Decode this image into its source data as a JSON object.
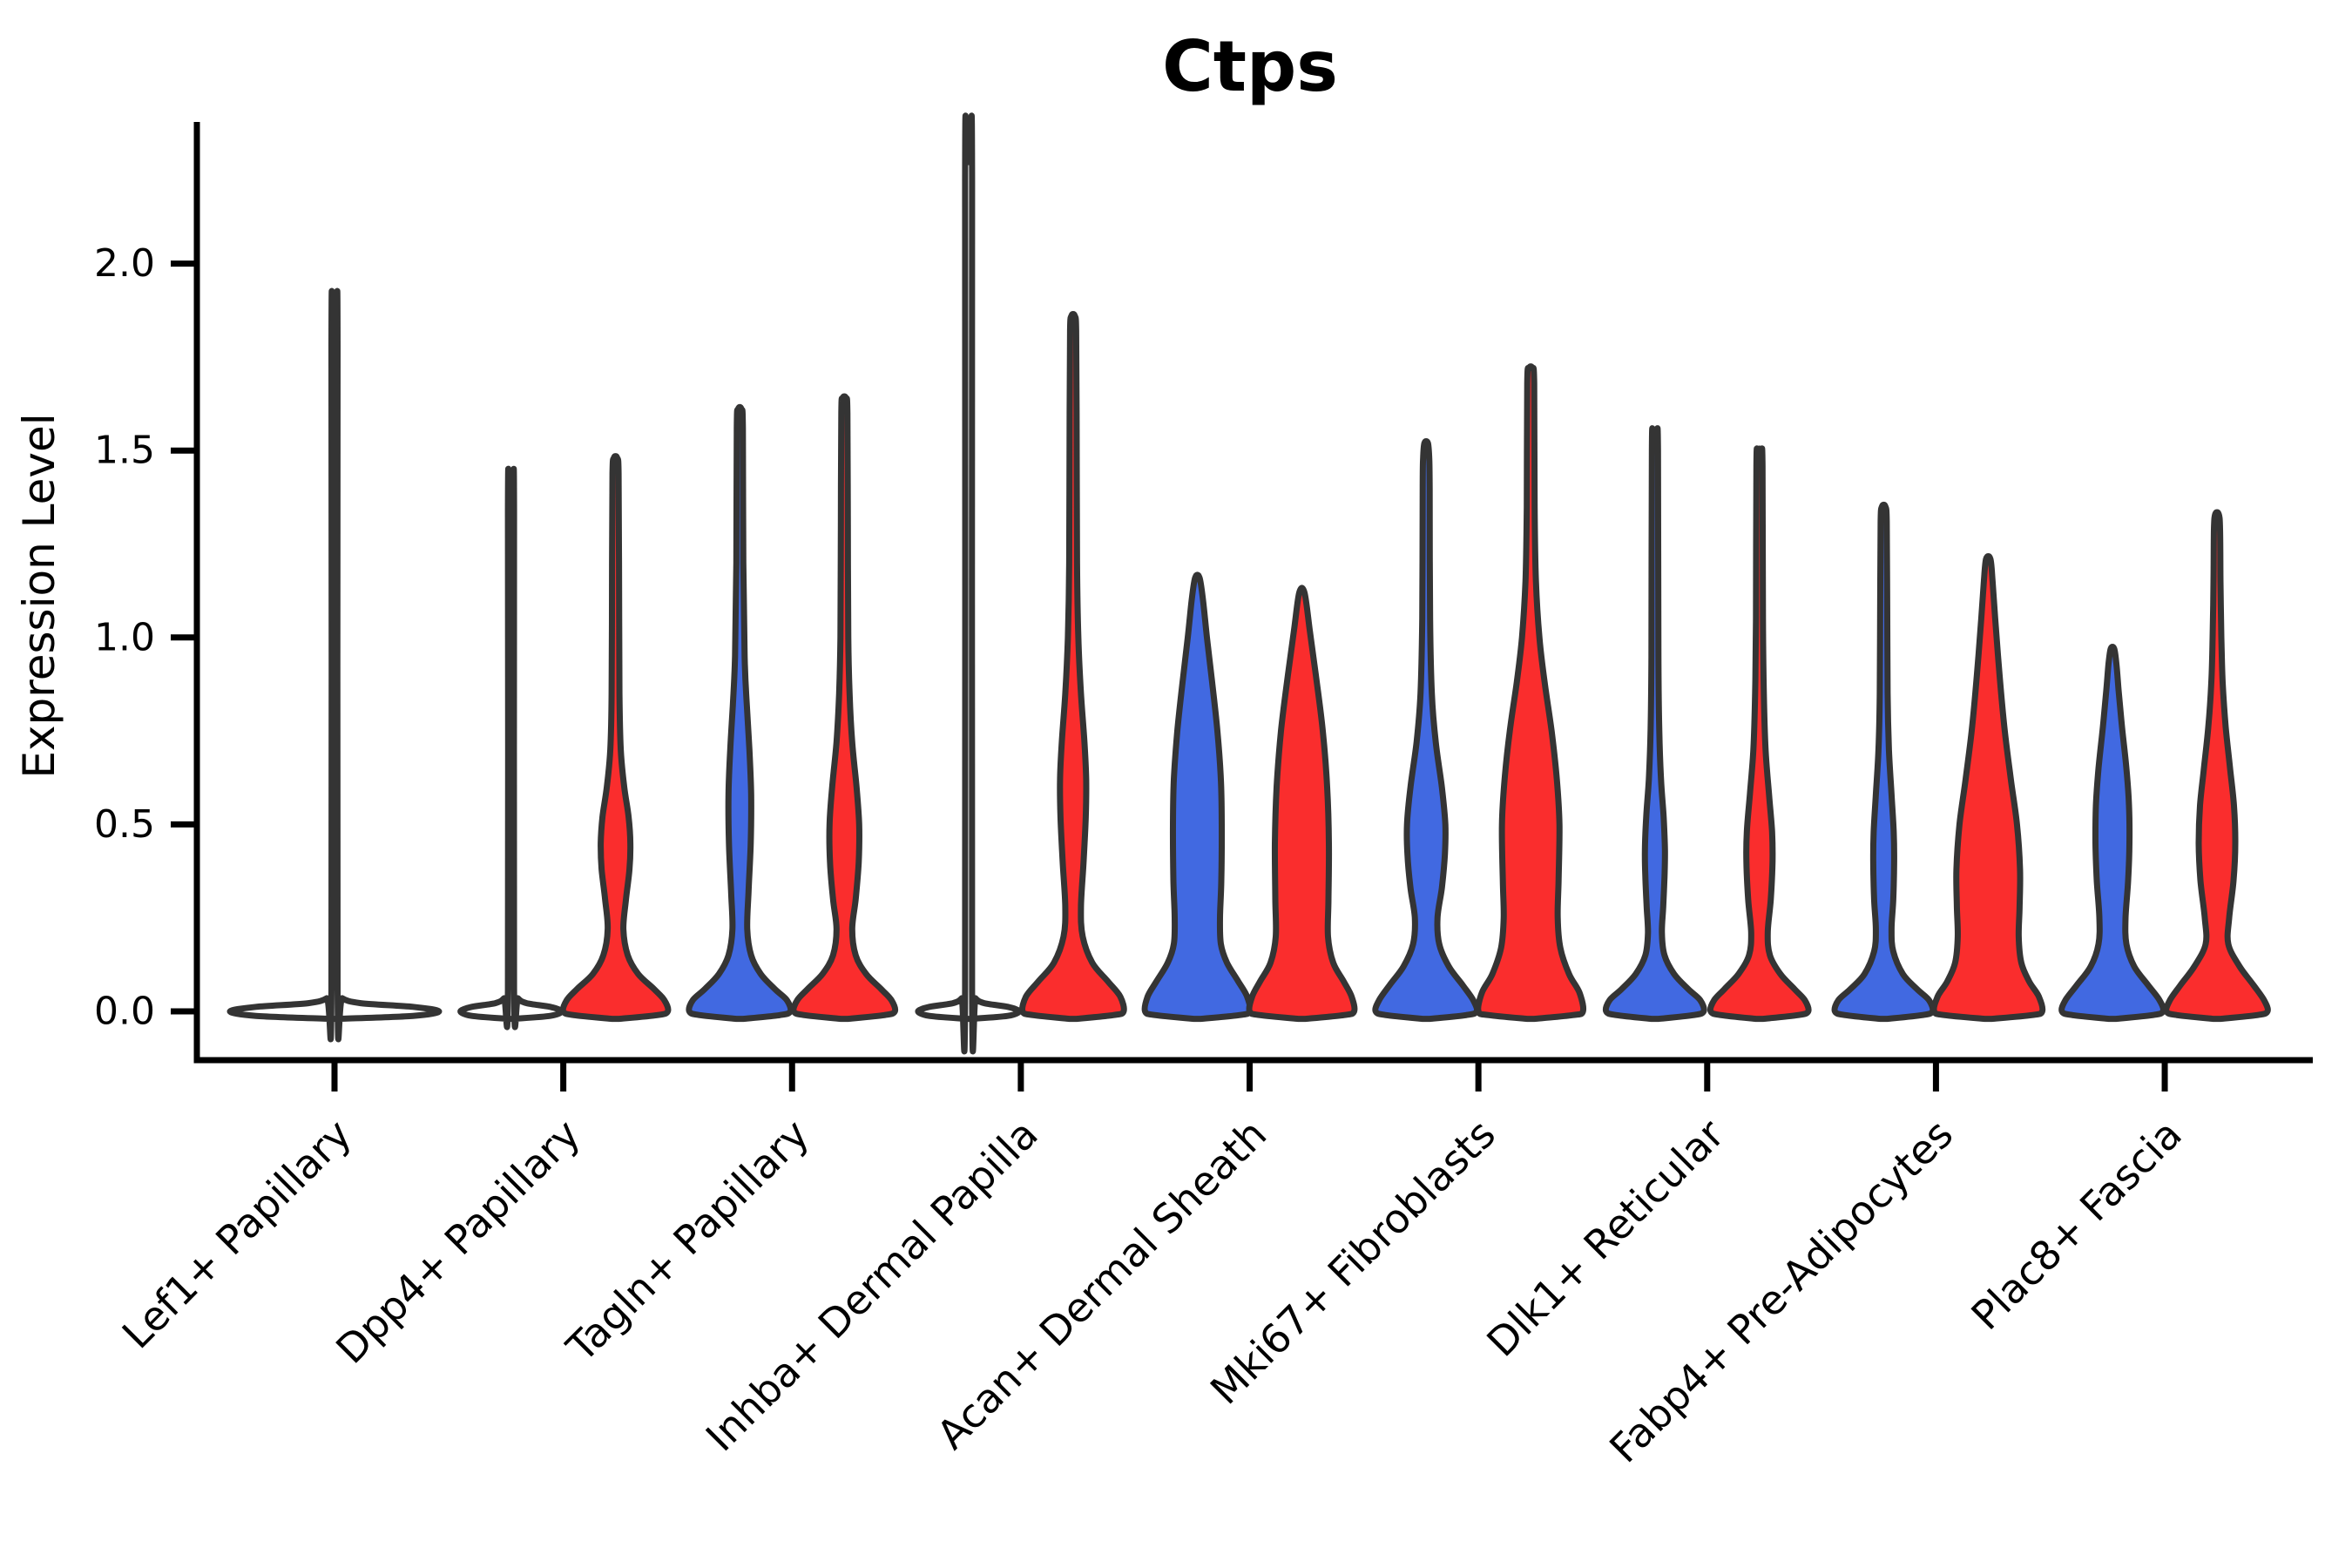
{
  "chart_data": {
    "type": "violin",
    "title": "Ctps",
    "xlabel": "",
    "ylabel": "Expression Level",
    "y_tick_labels": [
      "0.0",
      "0.5",
      "1.0",
      "1.5",
      "2.0"
    ],
    "y_ticks": [
      0.0,
      0.5,
      1.0,
      1.5,
      2.0
    ],
    "ylim": [
      -0.08,
      2.38
    ],
    "grid": false,
    "legend": "none",
    "categories": [
      "Lef1+ Papillary",
      "Dpp4+ Papillary",
      "Tagln+ Papillary",
      "Inhba+ Dermal Papilla",
      "Acan+ Dermal Sheath",
      "Mki67+ Fibroblasts",
      "Dlk1+ Reticular",
      "Fabp4+ Pre-Adipocytes",
      "Plac8+ Fascia"
    ],
    "series_colors": {
      "blue": "#4169E1",
      "red": "#FA2D2D"
    },
    "outline_color": "#343434",
    "axis_color": "#000000",
    "violins": [
      {
        "category_index": 0,
        "category": "Lef1+ Papillary",
        "side": "full",
        "color": "none",
        "max_expression": 1.84,
        "bulk_at": 0.0,
        "profile": [
          [
            -0.02,
            4
          ],
          [
            -0.012,
            90
          ],
          [
            0.0,
            120
          ],
          [
            0.012,
            90
          ],
          [
            0.022,
            30
          ],
          [
            0.035,
            9
          ],
          [
            0.06,
            3.5
          ],
          [
            1.78,
            3.5
          ],
          [
            1.84,
            2
          ]
        ]
      },
      {
        "category_index": 1,
        "category": "Dpp4+ Papillary",
        "side": "left",
        "color": "none",
        "max_expression": 1.39,
        "bulk_at": 0.0,
        "profile": [
          [
            -0.02,
            3
          ],
          [
            -0.012,
            45
          ],
          [
            0.0,
            58
          ],
          [
            0.012,
            45
          ],
          [
            0.022,
            18
          ],
          [
            0.035,
            8
          ],
          [
            0.06,
            3.5
          ],
          [
            1.34,
            3.5
          ],
          [
            1.39,
            2
          ]
        ]
      },
      {
        "category_index": 1,
        "category": "Dpp4+ Papillary",
        "side": "right",
        "color": "red",
        "max_expression": 1.48,
        "bulk_at": 0.45,
        "profile": [
          [
            -0.02,
            4
          ],
          [
            -0.01,
            48
          ],
          [
            0.0,
            60
          ],
          [
            0.03,
            56
          ],
          [
            0.06,
            44
          ],
          [
            0.1,
            26
          ],
          [
            0.15,
            14
          ],
          [
            0.22,
            9
          ],
          [
            0.3,
            12
          ],
          [
            0.38,
            16
          ],
          [
            0.45,
            17
          ],
          [
            0.52,
            15
          ],
          [
            0.6,
            10
          ],
          [
            0.7,
            6
          ],
          [
            0.85,
            4.5
          ],
          [
            1.2,
            4
          ],
          [
            1.44,
            3.5
          ],
          [
            1.48,
            2
          ]
        ]
      },
      {
        "category_index": 2,
        "category": "Tagln+ Papillary",
        "side": "left",
        "color": "blue",
        "max_expression": 1.61,
        "bulk_at": 0.58,
        "profile": [
          [
            -0.02,
            4
          ],
          [
            -0.01,
            46
          ],
          [
            0.0,
            58
          ],
          [
            0.03,
            54
          ],
          [
            0.06,
            40
          ],
          [
            0.1,
            24
          ],
          [
            0.15,
            13
          ],
          [
            0.22,
            8.5
          ],
          [
            0.32,
            10
          ],
          [
            0.45,
            12.5
          ],
          [
            0.58,
            13
          ],
          [
            0.7,
            11
          ],
          [
            0.82,
            8
          ],
          [
            0.95,
            5.5
          ],
          [
            1.2,
            4
          ],
          [
            1.56,
            3.5
          ],
          [
            1.61,
            2
          ]
        ]
      },
      {
        "category_index": 2,
        "category": "Tagln+ Papillary",
        "side": "right",
        "color": "red",
        "max_expression": 1.64,
        "bulk_at": 0.5,
        "profile": [
          [
            -0.02,
            4
          ],
          [
            -0.01,
            46
          ],
          [
            0.0,
            58
          ],
          [
            0.03,
            54
          ],
          [
            0.06,
            42
          ],
          [
            0.1,
            25
          ],
          [
            0.15,
            13
          ],
          [
            0.22,
            9
          ],
          [
            0.3,
            13
          ],
          [
            0.4,
            16.5
          ],
          [
            0.5,
            17
          ],
          [
            0.6,
            14
          ],
          [
            0.72,
            9
          ],
          [
            0.85,
            6
          ],
          [
            1.0,
            4.5
          ],
          [
            1.3,
            4
          ],
          [
            1.6,
            3.5
          ],
          [
            1.64,
            2
          ]
        ]
      },
      {
        "category_index": 3,
        "category": "Inhba+ Dermal Papilla",
        "side": "left",
        "color": "none",
        "max_expression": 2.27,
        "bulk_at": 0.0,
        "profile": [
          [
            -0.02,
            3
          ],
          [
            -0.012,
            45
          ],
          [
            0.0,
            58
          ],
          [
            0.012,
            45
          ],
          [
            0.022,
            18
          ],
          [
            0.035,
            8
          ],
          [
            0.06,
            4
          ],
          [
            2.22,
            4
          ],
          [
            2.27,
            2
          ]
        ]
      },
      {
        "category_index": 3,
        "category": "Inhba+ Dermal Papilla",
        "side": "right",
        "color": "red",
        "max_expression": 1.86,
        "bulk_at": 0.62,
        "profile": [
          [
            -0.02,
            4
          ],
          [
            -0.01,
            46
          ],
          [
            0.0,
            58
          ],
          [
            0.04,
            54
          ],
          [
            0.08,
            40
          ],
          [
            0.13,
            22
          ],
          [
            0.2,
            11
          ],
          [
            0.28,
            9
          ],
          [
            0.4,
            12
          ],
          [
            0.52,
            14.5
          ],
          [
            0.62,
            15
          ],
          [
            0.72,
            13
          ],
          [
            0.85,
            9
          ],
          [
            1.0,
            6
          ],
          [
            1.2,
            4.5
          ],
          [
            1.6,
            4
          ],
          [
            1.82,
            3.5
          ],
          [
            1.86,
            2
          ]
        ]
      },
      {
        "category_index": 4,
        "category": "Acan+ Dermal Sheath",
        "side": "left",
        "color": "blue",
        "max_expression": 1.16,
        "bulk_at": 0.52,
        "profile": [
          [
            -0.02,
            4
          ],
          [
            -0.01,
            48
          ],
          [
            0.0,
            60
          ],
          [
            0.04,
            57
          ],
          [
            0.08,
            47
          ],
          [
            0.13,
            34
          ],
          [
            0.18,
            27
          ],
          [
            0.25,
            26
          ],
          [
            0.35,
            27.5
          ],
          [
            0.5,
            28
          ],
          [
            0.62,
            27
          ],
          [
            0.75,
            23
          ],
          [
            0.88,
            17
          ],
          [
            1.0,
            11
          ],
          [
            1.1,
            6.5
          ],
          [
            1.16,
            2.5
          ]
        ]
      },
      {
        "category_index": 4,
        "category": "Acan+ Dermal Sheath",
        "side": "right",
        "color": "red",
        "max_expression": 1.12,
        "bulk_at": 0.45,
        "profile": [
          [
            -0.02,
            4
          ],
          [
            -0.01,
            48
          ],
          [
            0.0,
            60
          ],
          [
            0.04,
            57
          ],
          [
            0.08,
            48
          ],
          [
            0.13,
            36
          ],
          [
            0.2,
            30
          ],
          [
            0.3,
            30.5
          ],
          [
            0.45,
            31
          ],
          [
            0.6,
            29
          ],
          [
            0.75,
            24
          ],
          [
            0.9,
            16
          ],
          [
            1.02,
            9
          ],
          [
            1.12,
            3
          ]
        ]
      },
      {
        "category_index": 5,
        "category": "Mki67+ Fibroblasts",
        "side": "left",
        "color": "blue",
        "max_expression": 1.52,
        "bulk_at": 0.48,
        "profile": [
          [
            -0.02,
            4
          ],
          [
            -0.01,
            46
          ],
          [
            0.0,
            58
          ],
          [
            0.03,
            54
          ],
          [
            0.07,
            42
          ],
          [
            0.12,
            26
          ],
          [
            0.18,
            15
          ],
          [
            0.25,
            13
          ],
          [
            0.33,
            18
          ],
          [
            0.42,
            21.5
          ],
          [
            0.5,
            22
          ],
          [
            0.6,
            18
          ],
          [
            0.72,
            11
          ],
          [
            0.85,
            6.5
          ],
          [
            1.05,
            4.5
          ],
          [
            1.4,
            4
          ],
          [
            1.48,
            3.5
          ],
          [
            1.52,
            2
          ]
        ]
      },
      {
        "category_index": 5,
        "category": "Mki67+ Fibroblasts",
        "side": "right",
        "color": "red",
        "max_expression": 1.72,
        "bulk_at": 0.45,
        "profile": [
          [
            -0.02,
            4
          ],
          [
            -0.01,
            48
          ],
          [
            0.0,
            60
          ],
          [
            0.05,
            56
          ],
          [
            0.1,
            44
          ],
          [
            0.17,
            34
          ],
          [
            0.25,
            31
          ],
          [
            0.35,
            32
          ],
          [
            0.5,
            33
          ],
          [
            0.62,
            30
          ],
          [
            0.75,
            24
          ],
          [
            0.88,
            16
          ],
          [
            1.0,
            10
          ],
          [
            1.15,
            6
          ],
          [
            1.35,
            4.5
          ],
          [
            1.68,
            4
          ],
          [
            1.72,
            2
          ]
        ]
      },
      {
        "category_index": 6,
        "category": "Dlk1+ Reticular",
        "side": "left",
        "color": "blue",
        "max_expression": 1.55,
        "bulk_at": 0.43,
        "profile": [
          [
            -0.02,
            4
          ],
          [
            -0.01,
            44
          ],
          [
            0.0,
            56
          ],
          [
            0.03,
            52
          ],
          [
            0.06,
            38
          ],
          [
            0.1,
            22
          ],
          [
            0.15,
            11
          ],
          [
            0.21,
            8
          ],
          [
            0.28,
            9.5
          ],
          [
            0.36,
            11
          ],
          [
            0.43,
            11.5
          ],
          [
            0.52,
            10
          ],
          [
            0.62,
            7
          ],
          [
            0.75,
            5
          ],
          [
            0.95,
            4
          ],
          [
            1.5,
            3.5
          ],
          [
            1.55,
            2
          ]
        ]
      },
      {
        "category_index": 6,
        "category": "Dlk1+ Reticular",
        "side": "right",
        "color": "red",
        "max_expression": 1.5,
        "bulk_at": 0.45,
        "profile": [
          [
            -0.02,
            4
          ],
          [
            -0.01,
            44
          ],
          [
            0.0,
            56
          ],
          [
            0.03,
            52
          ],
          [
            0.06,
            40
          ],
          [
            0.1,
            24
          ],
          [
            0.15,
            12
          ],
          [
            0.21,
            9.5
          ],
          [
            0.3,
            13
          ],
          [
            0.4,
            15
          ],
          [
            0.48,
            14.5
          ],
          [
            0.58,
            11
          ],
          [
            0.7,
            7
          ],
          [
            0.85,
            5
          ],
          [
            1.05,
            4
          ],
          [
            1.46,
            3.5
          ],
          [
            1.5,
            2
          ]
        ]
      },
      {
        "category_index": 7,
        "category": "Fabp4+ Pre-Adipocytes",
        "side": "left",
        "color": "blue",
        "max_expression": 1.35,
        "bulk_at": 0.44,
        "profile": [
          [
            -0.02,
            4
          ],
          [
            -0.01,
            44
          ],
          [
            0.0,
            56
          ],
          [
            0.03,
            52
          ],
          [
            0.06,
            38
          ],
          [
            0.1,
            22
          ],
          [
            0.16,
            11
          ],
          [
            0.22,
            9
          ],
          [
            0.3,
            11
          ],
          [
            0.4,
            12
          ],
          [
            0.48,
            11.5
          ],
          [
            0.58,
            9
          ],
          [
            0.7,
            6
          ],
          [
            0.85,
            4.5
          ],
          [
            1.1,
            4
          ],
          [
            1.31,
            3.5
          ],
          [
            1.35,
            2
          ]
        ]
      },
      {
        "category_index": 7,
        "category": "Fabp4+ Pre-Adipocytes",
        "side": "right",
        "color": "red",
        "max_expression": 1.21,
        "bulk_at": 0.36,
        "profile": [
          [
            -0.02,
            4
          ],
          [
            -0.01,
            50
          ],
          [
            0.0,
            62
          ],
          [
            0.04,
            58
          ],
          [
            0.08,
            47
          ],
          [
            0.13,
            38
          ],
          [
            0.2,
            35
          ],
          [
            0.28,
            36
          ],
          [
            0.38,
            36.5
          ],
          [
            0.5,
            33
          ],
          [
            0.62,
            26
          ],
          [
            0.75,
            19
          ],
          [
            0.9,
            13
          ],
          [
            1.05,
            8
          ],
          [
            1.15,
            5
          ],
          [
            1.21,
            2.5
          ]
        ]
      },
      {
        "category_index": 8,
        "category": "Plac8+ Fascia",
        "side": "left",
        "color": "blue",
        "max_expression": 0.97,
        "bulk_at": 0.5,
        "profile": [
          [
            -0.02,
            4
          ],
          [
            -0.01,
            46
          ],
          [
            0.0,
            58
          ],
          [
            0.03,
            54
          ],
          [
            0.07,
            41
          ],
          [
            0.12,
            25
          ],
          [
            0.18,
            16
          ],
          [
            0.25,
            15
          ],
          [
            0.35,
            18
          ],
          [
            0.45,
            19.5
          ],
          [
            0.55,
            19
          ],
          [
            0.65,
            16
          ],
          [
            0.76,
            11
          ],
          [
            0.86,
            7
          ],
          [
            0.93,
            4.5
          ],
          [
            0.97,
            2
          ]
        ]
      },
      {
        "category_index": 8,
        "category": "Plac8+ Fascia",
        "side": "right",
        "color": "red",
        "max_expression": 1.33,
        "bulk_at": 0.48,
        "profile": [
          [
            -0.02,
            4
          ],
          [
            -0.01,
            46
          ],
          [
            0.0,
            58
          ],
          [
            0.03,
            54
          ],
          [
            0.07,
            42
          ],
          [
            0.12,
            26
          ],
          [
            0.18,
            13
          ],
          [
            0.25,
            14
          ],
          [
            0.35,
            19
          ],
          [
            0.45,
            21
          ],
          [
            0.55,
            19.5
          ],
          [
            0.65,
            15
          ],
          [
            0.76,
            10
          ],
          [
            0.88,
            6.5
          ],
          [
            1.0,
            5
          ],
          [
            1.15,
            4
          ],
          [
            1.29,
            3.5
          ],
          [
            1.33,
            2
          ]
        ]
      }
    ]
  }
}
